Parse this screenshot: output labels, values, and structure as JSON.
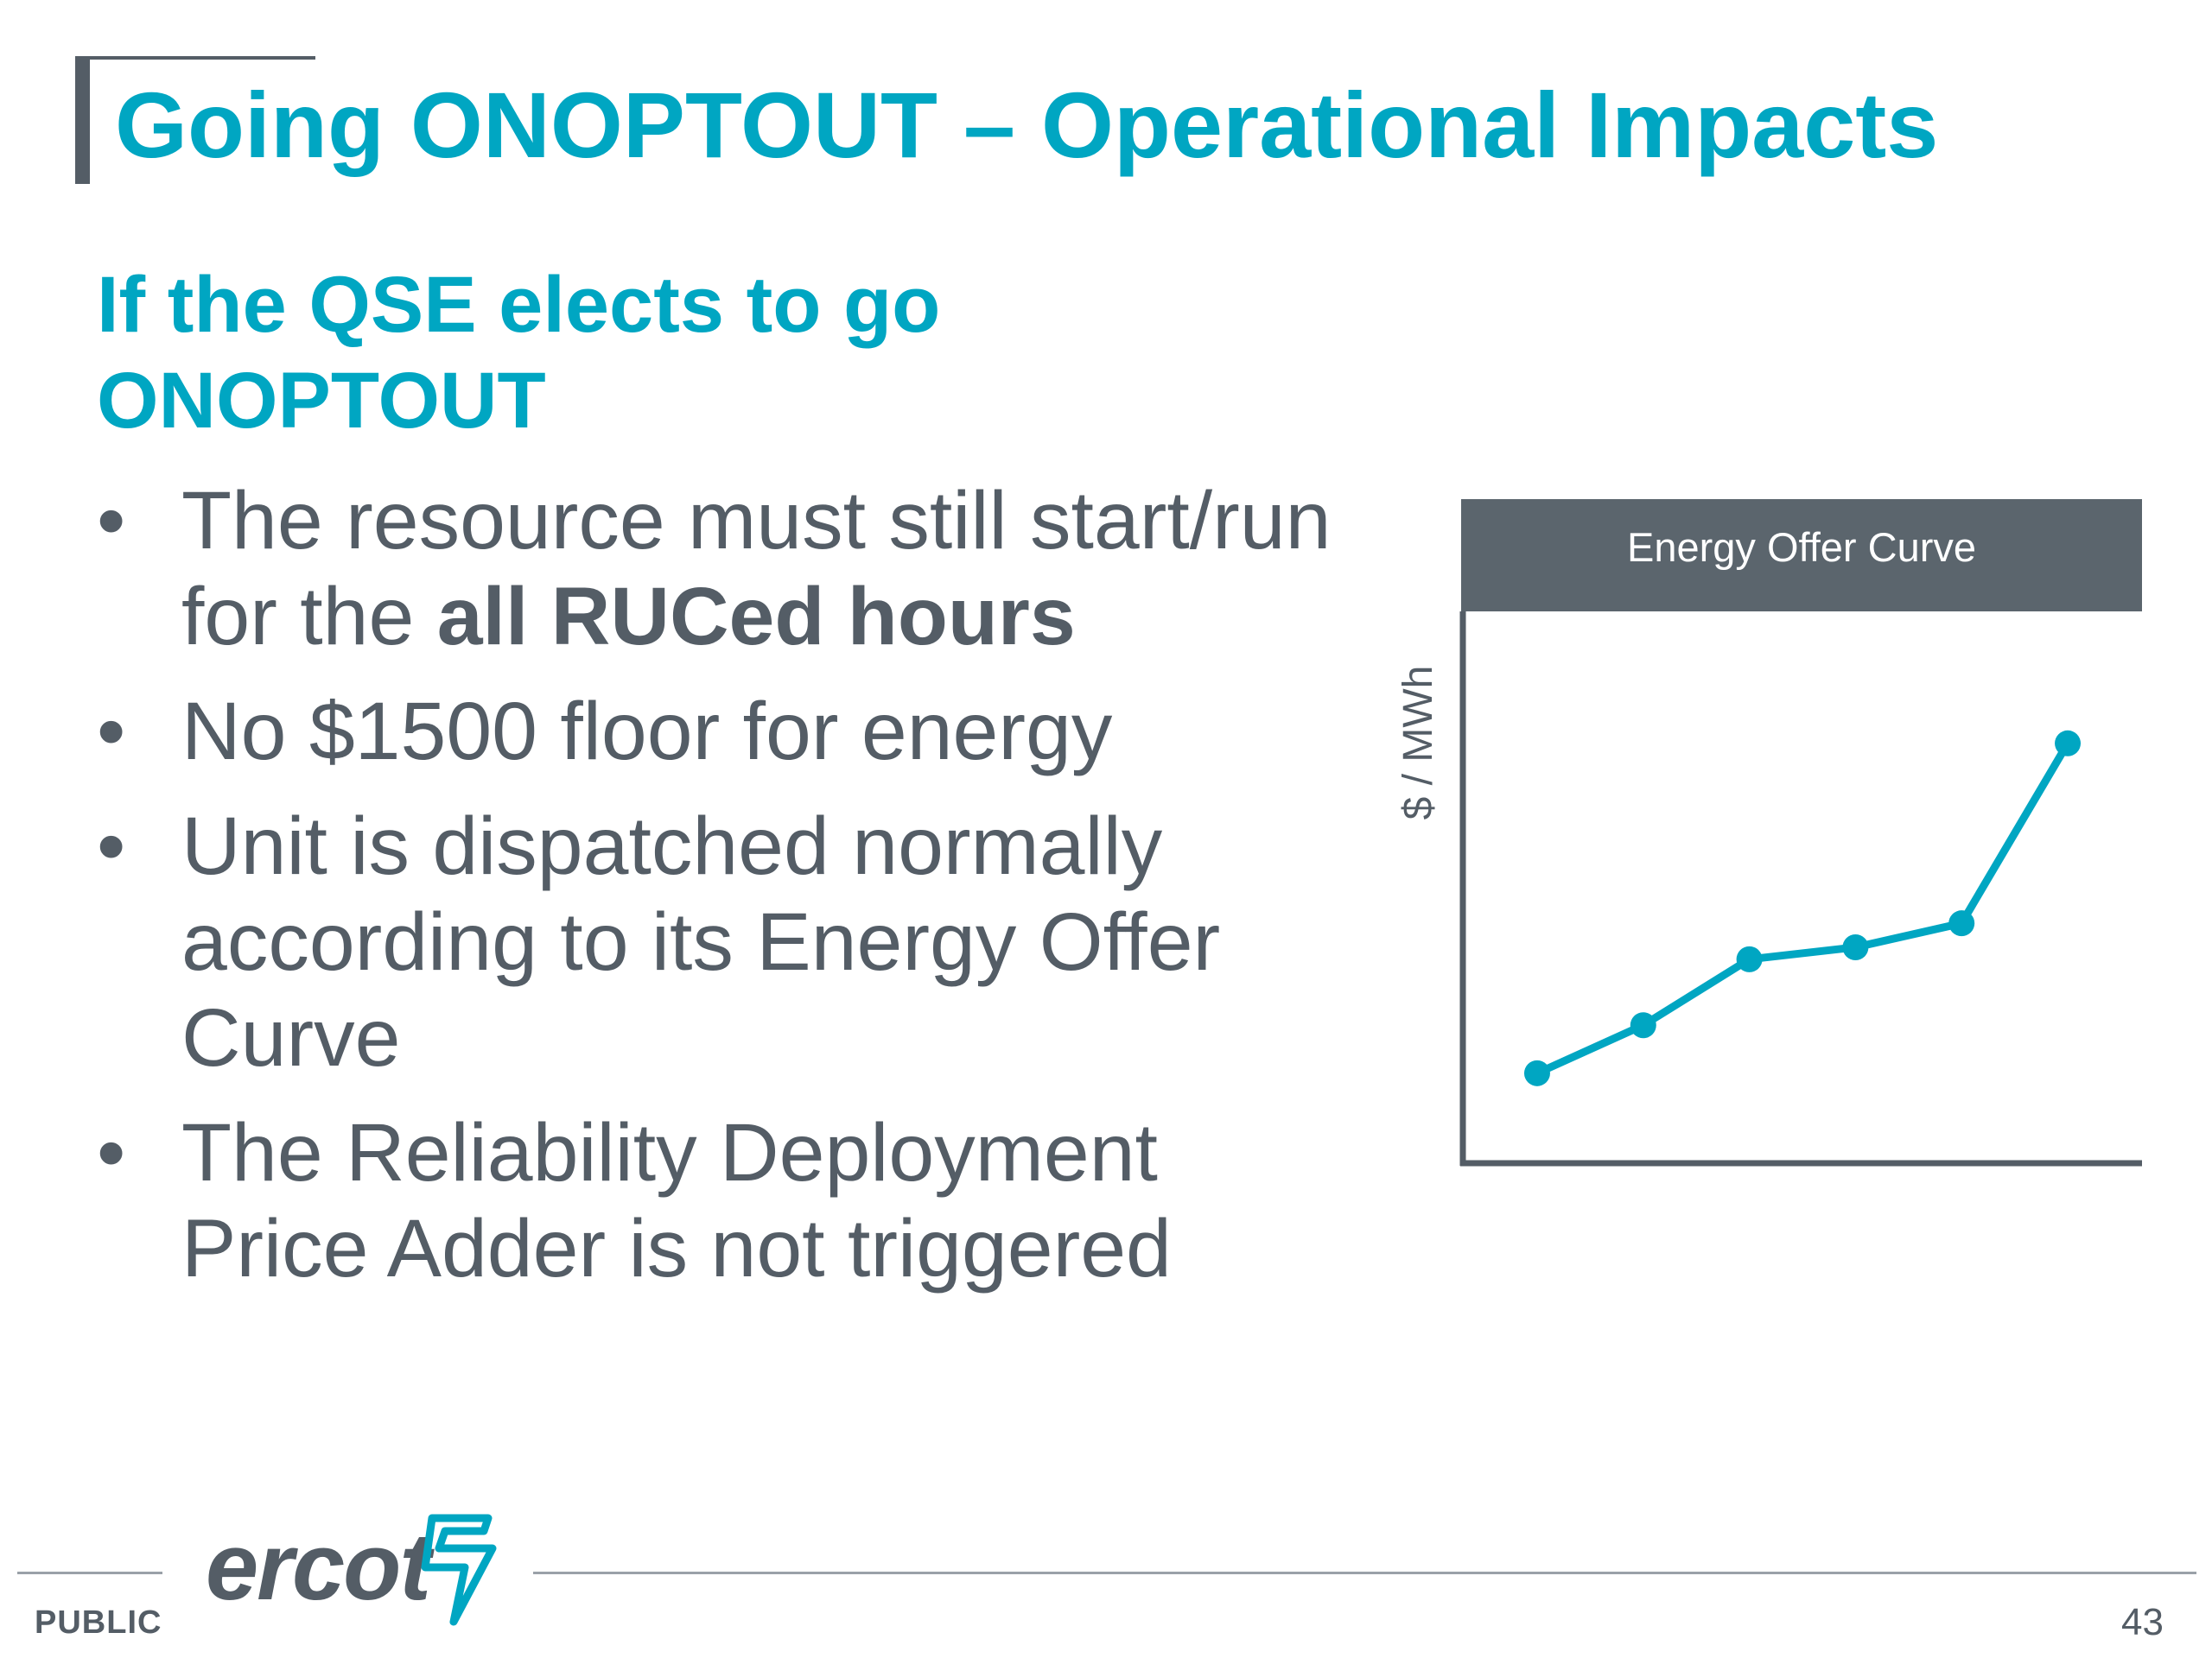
{
  "slide": {
    "title": "Going ONOPTOUT – Operational Impacts",
    "subheading_line1": "If the QSE elects to go",
    "subheading_line2": "ONOPTOUT",
    "bullets": [
      {
        "text_before": "The resource must still start/run for the ",
        "bold": "all RUCed hours",
        "text_after": ""
      },
      {
        "text_before": "No $1500 floor for energy",
        "bold": "",
        "text_after": ""
      },
      {
        "text_before": "Unit is dispatched normally according to its Energy Offer Curve",
        "bold": "",
        "text_after": ""
      },
      {
        "text_before": "The Reliability Deployment Price Adder is not triggered",
        "bold": "",
        "text_after": ""
      }
    ],
    "bullet_glyph": "•"
  },
  "chart_data": {
    "type": "line",
    "title": "Energy Offer Curve",
    "xlabel": "",
    "ylabel": "$ / MWh",
    "x": [
      1,
      2,
      3,
      4,
      5,
      6
    ],
    "values": [
      1.0,
      1.8,
      2.9,
      3.1,
      3.5,
      6.5
    ],
    "xlim": [
      0.3,
      6.7
    ],
    "ylim": [
      -0.5,
      8.7
    ],
    "grid": false,
    "line_color": "#00a6c2",
    "header_color": "#5b656d",
    "axis_color": "#545d66"
  },
  "footer": {
    "classification": "PUBLIC",
    "logo_text": "ercot",
    "page_number": "43"
  },
  "colors": {
    "accent": "#00a6c2",
    "text": "#545d66"
  }
}
